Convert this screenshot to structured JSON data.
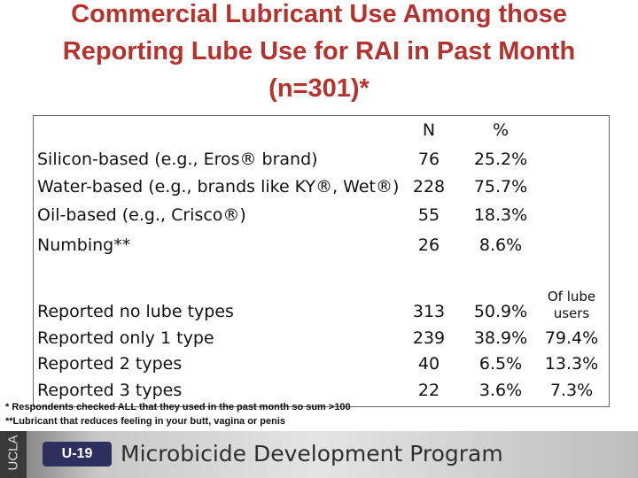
{
  "title": {
    "lines": [
      "Commercial Lubricant Use Among those",
      "Reporting Lube Use for RAI in Past Month",
      "(n=301)*"
    ]
  },
  "table": {
    "header": {
      "n": "N",
      "pct": "%",
      "of_lube": "Of lube users"
    },
    "rows": [
      {
        "label": "Silicon-based (e.g., Eros® brand)",
        "n": "76",
        "pct": "25.2%"
      },
      {
        "label": "Water-based (e.g., brands like KY®, Wet®)",
        "n": "228",
        "pct": "75.7%"
      },
      {
        "label": "Oil-based (e.g., Crisco®)",
        "n": "55",
        "pct": "18.3%"
      },
      {
        "label": "Numbing**",
        "n": "26",
        "pct": "8.6%"
      }
    ],
    "type_rows": [
      {
        "label": "Reported no lube types",
        "n": "313",
        "pct": "50.9%"
      },
      {
        "label": "Reported only 1 type",
        "n": "239",
        "pct": "38.9%",
        "of_lube": "79.4%"
      },
      {
        "label": "Reported 2 types",
        "n": "40",
        "pct": "6.5%",
        "of_lube": "13.3%"
      },
      {
        "label": "Reported 3 types",
        "n": "22",
        "pct": "3.6%",
        "of_lube": "7.3%"
      }
    ]
  },
  "footnotes": [
    "* Respondents checked ALL that they used in the past month so sum >100",
    "**Lubricant that reduces feeling in your butt, vagina or penis"
  ],
  "banner": {
    "ucla": "UCLA",
    "logo": "U-19",
    "program": "Microbicide Development Program"
  }
}
